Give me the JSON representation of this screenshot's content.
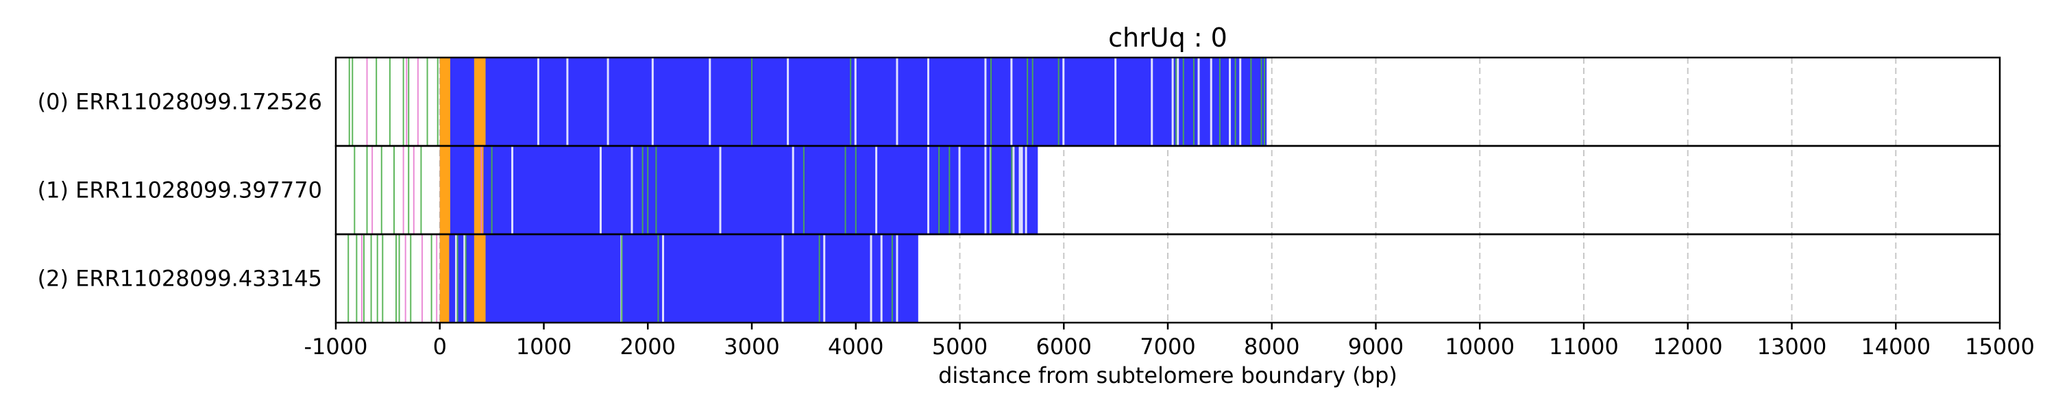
{
  "chart_data": {
    "type": "read-track",
    "title": "chrUq : 0",
    "xlabel": "distance from subtelomere boundary (bp)",
    "xlim": [
      -1000,
      15000
    ],
    "xticks": [
      -1000,
      0,
      1000,
      2000,
      3000,
      4000,
      5000,
      6000,
      7000,
      8000,
      9000,
      10000,
      11000,
      12000,
      13000,
      14000,
      15000
    ],
    "xtick_labels": [
      "-1000",
      "0",
      "1000",
      "2000",
      "3000",
      "4000",
      "5000",
      "6000",
      "7000",
      "8000",
      "9000",
      "10000",
      "11000",
      "12000",
      "13000",
      "14000",
      "15000"
    ],
    "grid": "x-dashed",
    "colors": {
      "repeat": "#3333ff",
      "orange": "#ffa31a",
      "green": "#4daf4a",
      "magenta": "#e87fd1",
      "white_gap": "#ffffff"
    },
    "reads": [
      {
        "label": "(0) ERR11028099.172526",
        "repeat_start": 0,
        "end": 7950,
        "orange_regions": [
          [
            0,
            100
          ],
          [
            330,
            440
          ]
        ],
        "white_gaps": [
          950,
          1230,
          1620,
          2050,
          2600,
          3350,
          4000,
          4400,
          4700,
          5250,
          5500,
          6000,
          6500,
          6850,
          7050,
          7100,
          7300,
          7420,
          7600,
          7700
        ],
        "green_marks": [
          -870,
          -840,
          -610,
          -480,
          -350,
          -300,
          -120,
          -20,
          3000,
          3950,
          5300,
          5650,
          5700,
          5950,
          7080,
          7150,
          7250,
          7500,
          7650,
          7800,
          7900,
          7930
        ],
        "magenta_marks": [
          -700,
          -320,
          -210
        ]
      },
      {
        "label": "(1) ERR11028099.397770",
        "repeat_start": 0,
        "end": 5750,
        "orange_regions": [
          [
            0,
            100
          ],
          [
            330,
            420
          ]
        ],
        "white_gaps": [
          400,
          700,
          1550,
          1850,
          2700,
          3400,
          4200,
          4700,
          5000,
          5250,
          5300,
          5520,
          5580,
          5600,
          5640
        ],
        "green_marks": [
          -820,
          -700,
          -560,
          -440,
          -300,
          -180,
          500,
          1950,
          2000,
          2080,
          3500,
          3900,
          4000,
          4800,
          4900,
          5300,
          5500
        ],
        "magenta_marks": [
          -650,
          -350,
          -250,
          400
        ]
      },
      {
        "label": "(2) ERR11028099.433145",
        "repeat_start": 0,
        "end": 4600,
        "orange_regions": [
          [
            0,
            90
          ],
          [
            330,
            440
          ]
        ],
        "white_gaps": [
          160,
          240,
          1750,
          2150,
          3300,
          3700,
          4150,
          4250,
          4400
        ],
        "green_marks": [
          -880,
          -800,
          -730,
          -660,
          -600,
          -550,
          -420,
          -390,
          -280,
          -80,
          170,
          250,
          1750,
          2100,
          3650,
          4350
        ],
        "magenta_marks": [
          -750,
          -330,
          -170,
          -30
        ]
      }
    ]
  }
}
